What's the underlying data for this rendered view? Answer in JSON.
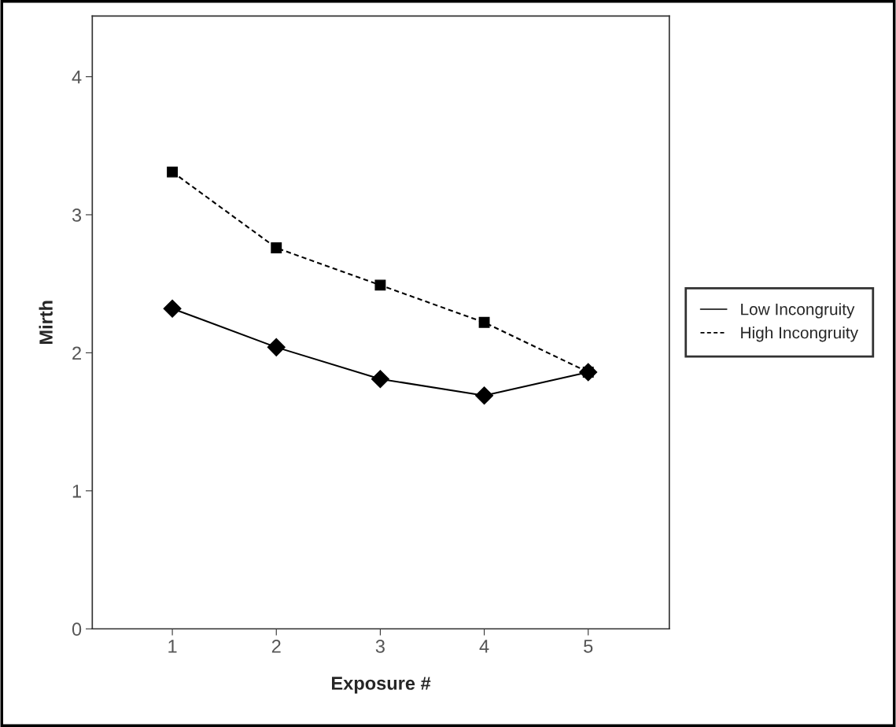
{
  "chart_data": {
    "type": "line",
    "xlabel": "Exposure #",
    "ylabel": "Mirth",
    "x": [
      1,
      2,
      3,
      4,
      5
    ],
    "xlim": [
      0.23,
      5.78
    ],
    "xticks": [
      1,
      2,
      3,
      4,
      5
    ],
    "ylim": [
      0,
      4.44
    ],
    "yticks": [
      0,
      1,
      2,
      3,
      4
    ],
    "grid": false,
    "legend": "right",
    "series": [
      {
        "name": "Low Incongruity",
        "color": "#000000",
        "marker": "diamond",
        "line_style": "solid",
        "values": [
          2.32,
          2.04,
          1.81,
          1.69,
          1.86
        ]
      },
      {
        "name": "High Incongruity",
        "color": "#000000",
        "marker": "square",
        "line_style": "dashed",
        "values": [
          3.31,
          2.76,
          2.49,
          2.22,
          1.86
        ]
      }
    ]
  }
}
